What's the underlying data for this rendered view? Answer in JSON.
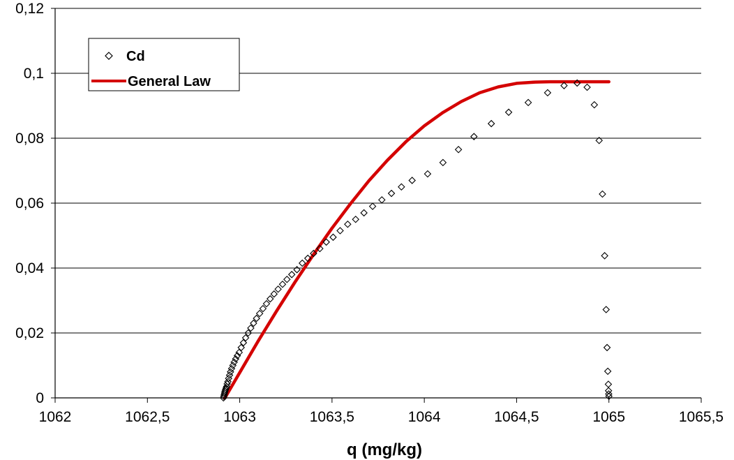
{
  "chart_data": {
    "type": "scatter",
    "title": "",
    "xlabel": "q (mg/kg)",
    "ylabel": "",
    "xlim": [
      1062,
      1065.5
    ],
    "ylim": [
      0,
      0.12
    ],
    "x_ticks": [
      1062,
      1062.5,
      1063,
      1063.5,
      1064,
      1064.5,
      1065,
      1065.5
    ],
    "x_tick_labels": [
      "1062",
      "1062,5",
      "1063",
      "1063,5",
      "1064",
      "1064,5",
      "1065",
      "1065,5"
    ],
    "y_ticks": [
      0,
      0.02,
      0.04,
      0.06,
      0.08,
      0.1,
      0.12
    ],
    "y_tick_labels": [
      "0",
      "0,02",
      "0,04",
      "0,06",
      "0,08",
      "0,1",
      "0,12"
    ],
    "grid": "horizontal",
    "legend_position": "top-left",
    "series": [
      {
        "name": "Cd",
        "type": "scatter",
        "marker": "diamond-open",
        "color": "#000000",
        "x": [
          1062.912,
          1062.914,
          1062.916,
          1062.918,
          1062.92,
          1062.923,
          1062.926,
          1062.929,
          1062.932,
          1062.936,
          1062.94,
          1062.945,
          1062.95,
          1062.956,
          1062.963,
          1062.97,
          1062.978,
          1062.987,
          1062.997,
          1063.008,
          1063.02,
          1063.032,
          1063.046,
          1063.06,
          1063.075,
          1063.091,
          1063.108,
          1063.126,
          1063.145,
          1063.165,
          1063.186,
          1063.208,
          1063.232,
          1063.256,
          1063.282,
          1063.31,
          1063.339,
          1063.369,
          1063.4,
          1063.434,
          1063.469,
          1063.506,
          1063.544,
          1063.585,
          1063.628,
          1063.673,
          1063.72,
          1063.77,
          1063.822,
          1063.876,
          1063.934,
          1064.018,
          1064.101,
          1064.185,
          1064.269,
          1064.363,
          1064.457,
          1064.563,
          1064.668,
          1064.757,
          1064.828,
          1064.882,
          1064.921,
          1064.947,
          1064.965,
          1064.977,
          1064.985,
          1064.99,
          1064.994,
          1064.997,
          1064.998,
          1064.999,
          1065.0
        ],
        "y": [
          0.0,
          0.0005,
          0.001,
          0.0015,
          0.002,
          0.0025,
          0.003,
          0.0035,
          0.0043,
          0.005,
          0.006,
          0.007,
          0.008,
          0.009,
          0.01,
          0.011,
          0.012,
          0.013,
          0.014,
          0.0155,
          0.017,
          0.0185,
          0.02,
          0.0215,
          0.023,
          0.0245,
          0.026,
          0.0275,
          0.029,
          0.0305,
          0.032,
          0.0335,
          0.035,
          0.0365,
          0.038,
          0.0395,
          0.0415,
          0.043,
          0.0445,
          0.046,
          0.048,
          0.0495,
          0.0515,
          0.0535,
          0.055,
          0.057,
          0.059,
          0.061,
          0.063,
          0.065,
          0.067,
          0.069,
          0.0725,
          0.0765,
          0.0805,
          0.0845,
          0.088,
          0.091,
          0.094,
          0.0962,
          0.097,
          0.0957,
          0.0903,
          0.0793,
          0.0628,
          0.0438,
          0.0272,
          0.0155,
          0.0082,
          0.0042,
          0.0022,
          0.0012,
          0.0005
        ],
        "x_note": "",
        "y_note": ""
      },
      {
        "name": "General Law",
        "type": "line",
        "color": "#d40000",
        "x": [
          1062.92,
          1063.0,
          1063.1,
          1063.2,
          1063.3,
          1063.4,
          1063.5,
          1063.6,
          1063.7,
          1063.8,
          1063.9,
          1064.0,
          1064.1,
          1064.2,
          1064.3,
          1064.4,
          1064.5,
          1064.6,
          1064.68,
          1064.8,
          1064.9,
          1065.0
        ],
        "y": [
          0.0,
          0.0078,
          0.0175,
          0.0268,
          0.0357,
          0.0442,
          0.0523,
          0.0598,
          0.0669,
          0.0732,
          0.0789,
          0.0838,
          0.0879,
          0.0913,
          0.094,
          0.0958,
          0.0969,
          0.0973,
          0.0974,
          0.0974,
          0.0974,
          0.0974
        ]
      }
    ]
  }
}
